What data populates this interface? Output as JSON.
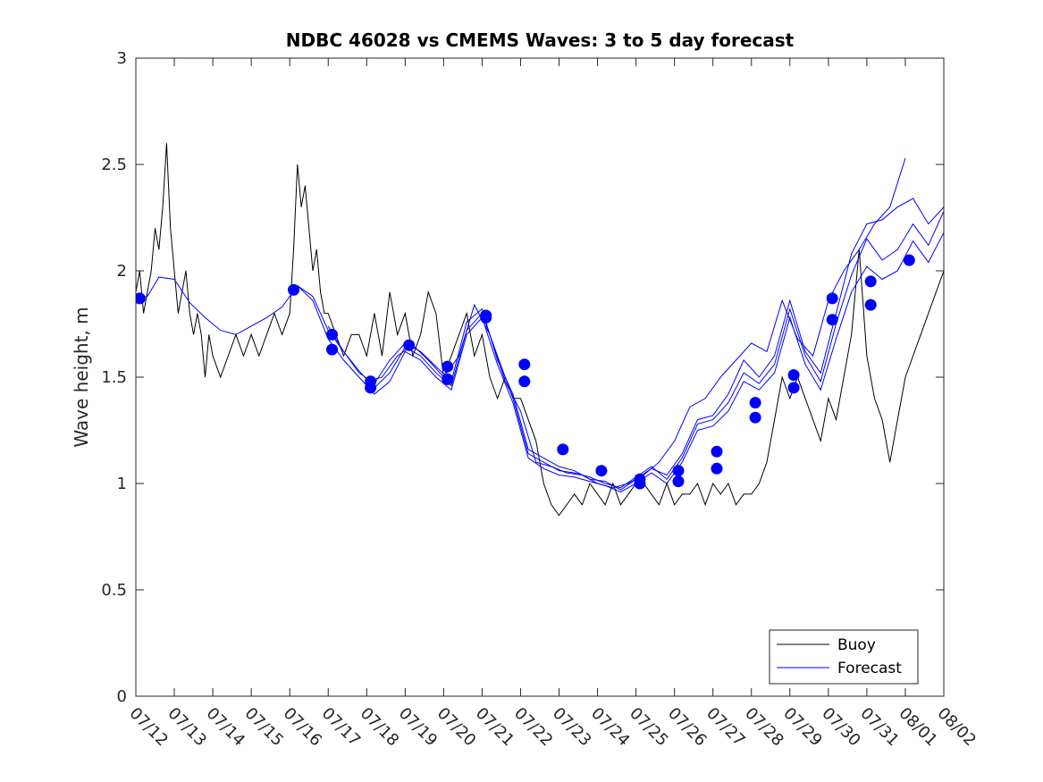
{
  "chart_data": {
    "type": "line",
    "title": "NDBC 46028 vs CMEMS Waves: 3 to 5 day forecast",
    "xlabel": "",
    "ylabel": "Wave height, m",
    "x_range": [
      "07/12",
      "08/02"
    ],
    "ylim": [
      0,
      3
    ],
    "x_ticks": [
      "07/12",
      "07/13",
      "07/14",
      "07/15",
      "07/16",
      "07/17",
      "07/18",
      "07/19",
      "07/20",
      "07/21",
      "07/22",
      "07/23",
      "07/24",
      "07/25",
      "07/26",
      "07/27",
      "07/28",
      "07/29",
      "07/30",
      "07/31",
      "08/01",
      "08/02"
    ],
    "y_ticks": [
      0,
      0.5,
      1,
      1.5,
      2,
      2.5,
      3
    ],
    "y_tick_labels": [
      "0",
      "0.5",
      "1",
      "1.5",
      "2",
      "2.5",
      "3"
    ],
    "grid": false,
    "legend_position": "bottom-right",
    "legend": [
      "Buoy",
      "Forecast"
    ],
    "colors": {
      "buoy": "#000000",
      "forecast": "#0000ff",
      "markers": "#0000ff"
    },
    "buoy": {
      "name": "Buoy",
      "x_day": [
        0,
        0.1,
        0.2,
        0.3,
        0.4,
        0.5,
        0.6,
        0.7,
        0.8,
        0.9,
        1.0,
        1.1,
        1.2,
        1.3,
        1.4,
        1.5,
        1.6,
        1.7,
        1.8,
        1.9,
        2.0,
        2.2,
        2.4,
        2.6,
        2.8,
        3.0,
        3.2,
        3.4,
        3.6,
        3.8,
        4.0,
        4.1,
        4.2,
        4.3,
        4.4,
        4.5,
        4.6,
        4.7,
        4.8,
        4.9,
        5.0,
        5.2,
        5.4,
        5.6,
        5.8,
        6.0,
        6.2,
        6.4,
        6.6,
        6.8,
        7.0,
        7.2,
        7.4,
        7.6,
        7.8,
        8.0,
        8.2,
        8.4,
        8.6,
        8.8,
        9.0,
        9.2,
        9.4,
        9.6,
        9.8,
        10.0,
        10.2,
        10.4,
        10.6,
        10.8,
        11.0,
        11.2,
        11.4,
        11.6,
        11.8,
        12.0,
        12.2,
        12.4,
        12.6,
        12.8,
        13.0,
        13.2,
        13.4,
        13.6,
        13.8,
        14.0,
        14.2,
        14.4,
        14.6,
        14.8,
        15.0,
        15.2,
        15.4,
        15.6,
        15.8,
        16.0,
        16.2,
        16.4,
        16.6,
        16.8,
        17.0,
        17.2,
        17.4,
        17.6,
        17.8,
        18.0,
        18.2,
        18.4,
        18.6,
        18.8,
        19.0,
        19.2,
        19.4,
        19.6,
        19.8,
        20.0,
        20.2,
        20.4,
        20.6,
        20.8,
        21.0
      ],
      "values": [
        1.9,
        2.0,
        1.8,
        1.9,
        2.0,
        2.2,
        2.1,
        2.3,
        2.6,
        2.2,
        2.0,
        1.8,
        1.9,
        2.0,
        1.8,
        1.7,
        1.8,
        1.7,
        1.5,
        1.7,
        1.6,
        1.5,
        1.6,
        1.7,
        1.6,
        1.7,
        1.6,
        1.7,
        1.8,
        1.7,
        1.8,
        2.1,
        2.5,
        2.3,
        2.4,
        2.2,
        2.0,
        2.1,
        1.9,
        1.8,
        1.8,
        1.7,
        1.6,
        1.7,
        1.7,
        1.6,
        1.8,
        1.6,
        1.9,
        1.7,
        1.8,
        1.6,
        1.7,
        1.9,
        1.8,
        1.5,
        1.6,
        1.7,
        1.8,
        1.6,
        1.7,
        1.5,
        1.4,
        1.5,
        1.4,
        1.4,
        1.3,
        1.2,
        1.0,
        0.9,
        0.85,
        0.9,
        0.95,
        0.9,
        1.0,
        0.95,
        0.9,
        1.0,
        0.9,
        0.95,
        1.0,
        1.0,
        0.95,
        0.9,
        1.0,
        0.9,
        0.95,
        0.95,
        1.0,
        0.9,
        1.0,
        0.95,
        1.0,
        0.9,
        0.95,
        0.95,
        1.0,
        1.1,
        1.3,
        1.5,
        1.4,
        1.5,
        1.4,
        1.3,
        1.2,
        1.4,
        1.3,
        1.5,
        1.7,
        2.1,
        1.6,
        1.4,
        1.3,
        1.1,
        1.3,
        1.5,
        1.6,
        1.7,
        1.8,
        1.9,
        2.0
      ]
    },
    "forecast_series": [
      {
        "name": "Forecast",
        "x_day": [
          0,
          0.3,
          0.6,
          1.0,
          1.4,
          1.8,
          2.2,
          2.6,
          3.0,
          3.4,
          3.8,
          4.2,
          4.6,
          5.0,
          5.4,
          5.8,
          6.2,
          6.6,
          7.0,
          7.4,
          7.8,
          8.2,
          8.6,
          9.0,
          9.4,
          9.8,
          10.2,
          10.6,
          11.0,
          11.4,
          11.8,
          12.2,
          12.6,
          13.0,
          13.4,
          13.8,
          14.2,
          14.6,
          15.0,
          15.4,
          15.8,
          16.2,
          16.6,
          17.0,
          17.4,
          17.8,
          18.2,
          18.6,
          19.0,
          19.4,
          19.8,
          20.2,
          20.6,
          21.0
        ],
        "values": [
          1.87,
          1.88,
          1.97,
          1.96,
          1.85,
          1.78,
          1.72,
          1.7,
          1.74,
          1.78,
          1.83,
          1.93,
          1.88,
          1.72,
          1.62,
          1.53,
          1.45,
          1.52,
          1.64,
          1.6,
          1.52,
          1.46,
          1.72,
          1.8,
          1.6,
          1.4,
          1.14,
          1.1,
          1.06,
          1.05,
          1.03,
          1.0,
          0.98,
          1.03,
          1.08,
          1.02,
          1.12,
          1.28,
          1.3,
          1.38,
          1.52,
          1.47,
          1.56,
          1.82,
          1.6,
          1.48,
          1.75,
          1.98,
          2.15,
          2.05,
          2.1,
          2.22,
          2.12,
          2.28
        ]
      },
      {
        "name": "",
        "x_day": [
          4.2,
          4.6,
          5.0,
          5.4,
          5.8,
          6.2,
          6.6,
          7.0,
          7.4,
          7.8,
          8.2,
          8.6,
          9.0,
          9.4,
          9.8,
          10.2,
          10.6,
          11.0,
          11.4,
          11.8,
          12.2,
          12.6,
          13.0,
          13.4,
          13.8,
          14.2,
          14.6,
          15.0,
          15.4,
          15.8,
          16.2,
          16.6,
          17.0,
          17.4,
          17.8,
          18.2,
          18.6,
          19.0,
          19.4,
          19.8,
          20.2,
          20.6,
          21.0
        ],
        "values": [
          1.93,
          1.86,
          1.68,
          1.58,
          1.5,
          1.42,
          1.48,
          1.62,
          1.58,
          1.5,
          1.44,
          1.7,
          1.78,
          1.56,
          1.38,
          1.12,
          1.07,
          1.04,
          1.03,
          1.01,
          0.99,
          0.96,
          1.0,
          1.05,
          1.0,
          1.1,
          1.25,
          1.27,
          1.34,
          1.48,
          1.44,
          1.52,
          1.78,
          1.56,
          1.44,
          1.68,
          1.9,
          2.02,
          1.96,
          2.0,
          2.14,
          2.04,
          2.18
        ]
      },
      {
        "name": "",
        "x_day": [
          5.0,
          5.4,
          5.8,
          6.2,
          6.6,
          7.0,
          7.4,
          7.8,
          8.2,
          8.6,
          9.0,
          9.4,
          9.8,
          10.2,
          10.6,
          11.0,
          11.4,
          11.8,
          12.2,
          12.6,
          13.0,
          13.4,
          13.8,
          14.2,
          14.6,
          15.0,
          15.4,
          15.8,
          16.2,
          16.6,
          17.0,
          17.4,
          17.8,
          18.2,
          18.6,
          19.0,
          19.4,
          19.8,
          20.2,
          20.6,
          21.0
        ],
        "values": [
          1.74,
          1.62,
          1.52,
          1.47,
          1.58,
          1.66,
          1.62,
          1.55,
          1.48,
          1.76,
          1.82,
          1.58,
          1.42,
          1.16,
          1.12,
          1.08,
          1.06,
          1.02,
          1.01,
          0.97,
          1.02,
          1.07,
          1.04,
          1.14,
          1.3,
          1.32,
          1.42,
          1.58,
          1.5,
          1.6,
          1.86,
          1.62,
          1.52,
          1.8,
          2.08,
          2.22,
          2.24,
          2.3,
          2.34,
          2.22,
          2.3
        ]
      },
      {
        "name": "",
        "x_day": [
          6.0,
          6.4,
          6.8,
          7.2,
          7.6,
          8.0,
          8.4,
          8.8,
          9.2,
          9.6,
          10.0,
          10.4,
          10.8,
          11.2,
          11.6,
          12.0,
          12.4,
          12.8,
          13.2,
          13.6,
          14.0,
          14.4,
          14.8,
          15.2,
          15.6,
          16.0,
          16.4,
          16.8,
          17.2,
          17.6,
          18.0,
          18.4,
          18.8,
          19.2,
          19.6,
          20.0
        ],
        "values": [
          1.48,
          1.5,
          1.6,
          1.65,
          1.58,
          1.5,
          1.6,
          1.84,
          1.7,
          1.48,
          1.34,
          1.1,
          1.08,
          1.05,
          1.04,
          1.0,
          0.98,
          1.0,
          1.04,
          1.1,
          1.2,
          1.36,
          1.4,
          1.5,
          1.58,
          1.66,
          1.62,
          1.86,
          1.68,
          1.6,
          1.86,
          2.0,
          2.1,
          2.22,
          2.3,
          2.53
        ]
      }
    ],
    "markers": {
      "x_day": [
        0.1,
        4.1,
        5.1,
        5.1,
        6.1,
        6.1,
        7.1,
        8.1,
        8.1,
        9.1,
        9.1,
        10.1,
        10.1,
        11.1,
        12.1,
        13.1,
        13.1,
        14.1,
        14.1,
        15.1,
        15.1,
        16.1,
        16.1,
        17.1,
        17.1,
        18.1,
        18.1,
        19.1,
        19.1,
        20.1
      ],
      "values": [
        1.87,
        1.91,
        1.7,
        1.63,
        1.48,
        1.45,
        1.65,
        1.55,
        1.49,
        1.79,
        1.78,
        1.56,
        1.48,
        1.16,
        1.06,
        1.02,
        1.0,
        1.06,
        1.01,
        1.15,
        1.07,
        1.38,
        1.31,
        1.51,
        1.45,
        1.87,
        1.77,
        1.95,
        1.84,
        2.05
      ]
    }
  }
}
